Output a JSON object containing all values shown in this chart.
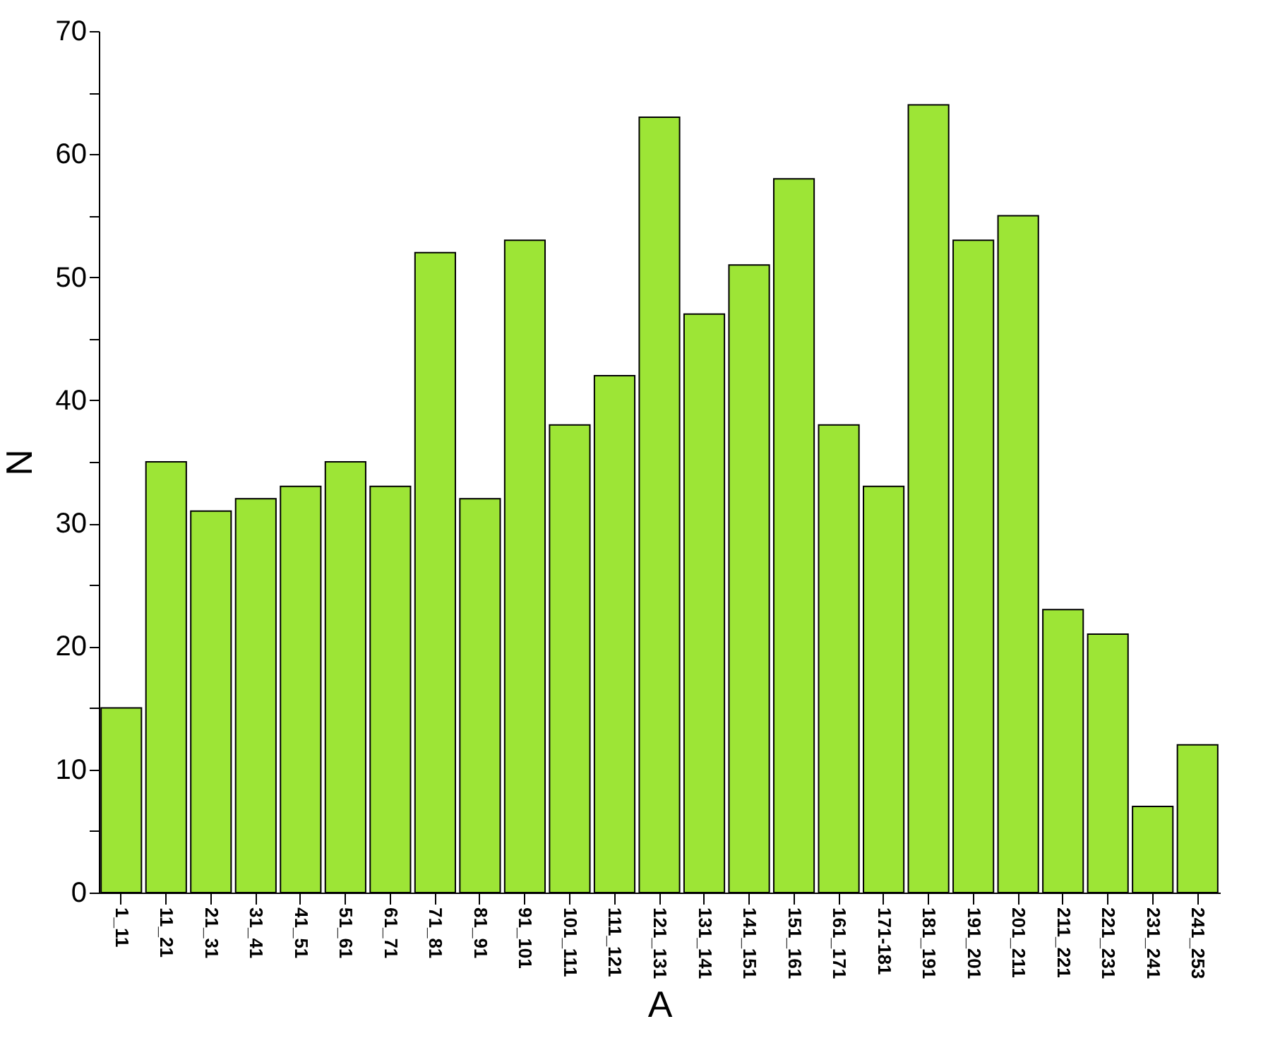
{
  "chart_data": {
    "type": "bar",
    "xlabel": "A",
    "ylabel": "N",
    "categories": [
      "1_11",
      "11_21",
      "21_31",
      "31_41",
      "41_51",
      "51_61",
      "61_71",
      "71_81",
      "81_91",
      "91_101",
      "101_111",
      "111_121",
      "121_131",
      "131_141",
      "141_151",
      "151_161",
      "161_171",
      "171-181",
      "181_191",
      "191_201",
      "201_211",
      "211_221",
      "221_231",
      "231_241",
      "241_253"
    ],
    "values": [
      15,
      35,
      31,
      32,
      33,
      35,
      33,
      52,
      32,
      53,
      38,
      42,
      63,
      47,
      51,
      58,
      38,
      33,
      64,
      53,
      55,
      23,
      21,
      7,
      12
    ],
    "color": "#9de536",
    "ylim": [
      0,
      70
    ],
    "yticks": [
      0,
      {
        "value": 5,
        "label": null
      },
      10,
      {
        "value": 15,
        "label": null
      },
      20,
      {
        "value": 25,
        "label": null
      },
      30,
      {
        "value": 35,
        "label": null
      },
      40,
      {
        "value": 45,
        "label": null
      },
      50,
      {
        "value": 55,
        "label": null
      },
      60,
      {
        "value": 65,
        "label": null
      },
      70
    ],
    "grid": false
  }
}
